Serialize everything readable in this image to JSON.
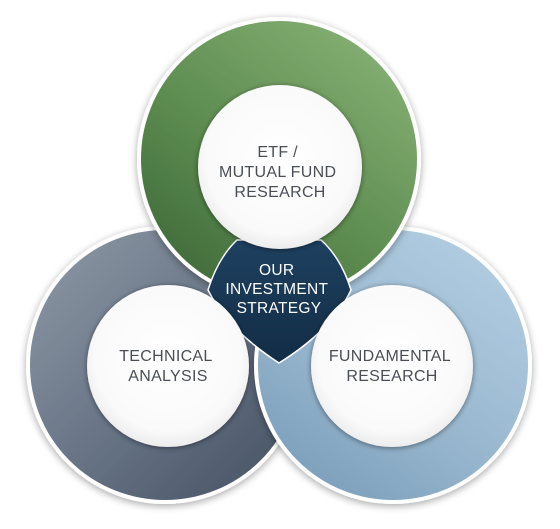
{
  "diagram": {
    "center": {
      "lines": [
        "OUR",
        "INVESTMENT",
        "STRATEGY"
      ],
      "color": "#163450"
    },
    "circles": {
      "top": {
        "lines": [
          "ETF /",
          "MUTUAL FUND",
          "RESEARCH"
        ],
        "color": "#5f8f52"
      },
      "left": {
        "lines": [
          "TECHNICAL",
          "ANALYSIS"
        ],
        "color": "#5f6d80"
      },
      "right": {
        "lines": [
          "FUNDAMENTAL",
          "RESEARCH"
        ],
        "color": "#9bbad3"
      }
    }
  }
}
